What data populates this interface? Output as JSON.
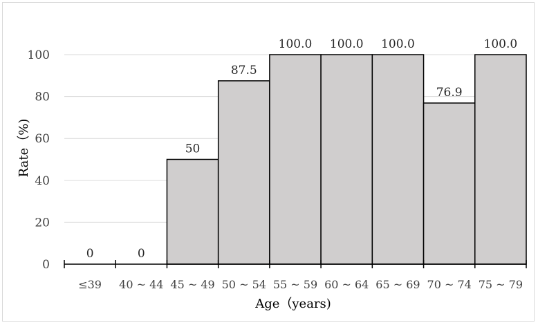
{
  "chart_data": {
    "type": "bar",
    "categories": [
      "≤39",
      "40 ~ 44",
      "45 ~ 49",
      "50 ~ 54",
      "55 ~ 59",
      "60 ~ 64",
      "65 ~ 69",
      "70 ~ 74",
      "75 ~ 79"
    ],
    "values": [
      0,
      0,
      50,
      87.5,
      100.0,
      100.0,
      100.0,
      76.9,
      100.0
    ],
    "data_labels": [
      "0",
      "0",
      "50",
      "87.5",
      "100.0",
      "100.0",
      "100.0",
      "76.9",
      "100.0"
    ],
    "xlabel": "Age（years)",
    "ylabel": "Rate（%)",
    "ylim": [
      0,
      100
    ],
    "yticks": [
      "0",
      "20",
      "40",
      "60",
      "80",
      "100"
    ],
    "grid": true,
    "bar_color": "#d0cece",
    "bar_edge_color": "#000000",
    "grid_color": "#d9d9d9"
  }
}
